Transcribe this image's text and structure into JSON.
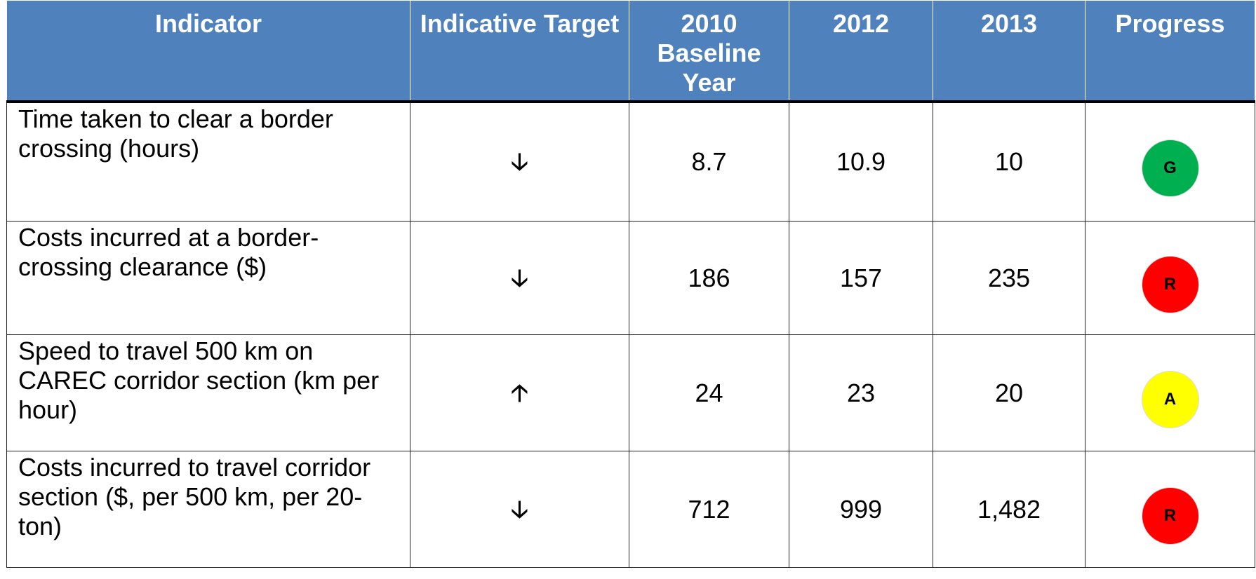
{
  "table": {
    "header": [
      "Indicator",
      "Indicative Target",
      "2010 Baseline Year",
      "2012",
      "2013",
      "Progress"
    ],
    "rows": [
      {
        "indicator": "Time taken to clear a border crossing (hours)",
        "target": "🡣",
        "values": [
          "8.7",
          "10.9",
          "10"
        ],
        "progress": {
          "label": "G",
          "color": "#00b050"
        }
      },
      {
        "indicator": "Costs incurred at a border-crossing clearance ($)",
        "target": "🡣",
        "values": [
          "186",
          "157",
          "235"
        ],
        "progress": {
          "label": "R",
          "color": "#ff0000"
        }
      },
      {
        "indicator": "Speed to travel 500 km on CAREC corridor section (km per hour)",
        "target": "🡡",
        "values": [
          "24",
          "23",
          "20"
        ],
        "progress": {
          "label": "A",
          "color": "#ffff00"
        }
      },
      {
        "indicator": "Costs incurred to travel corridor section ($, per 500 km, per 20-ton)",
        "target": "🡣",
        "values": [
          "712",
          "999",
          "1,482"
        ],
        "progress": {
          "label": "R",
          "color": "#ff0000"
        }
      }
    ]
  }
}
